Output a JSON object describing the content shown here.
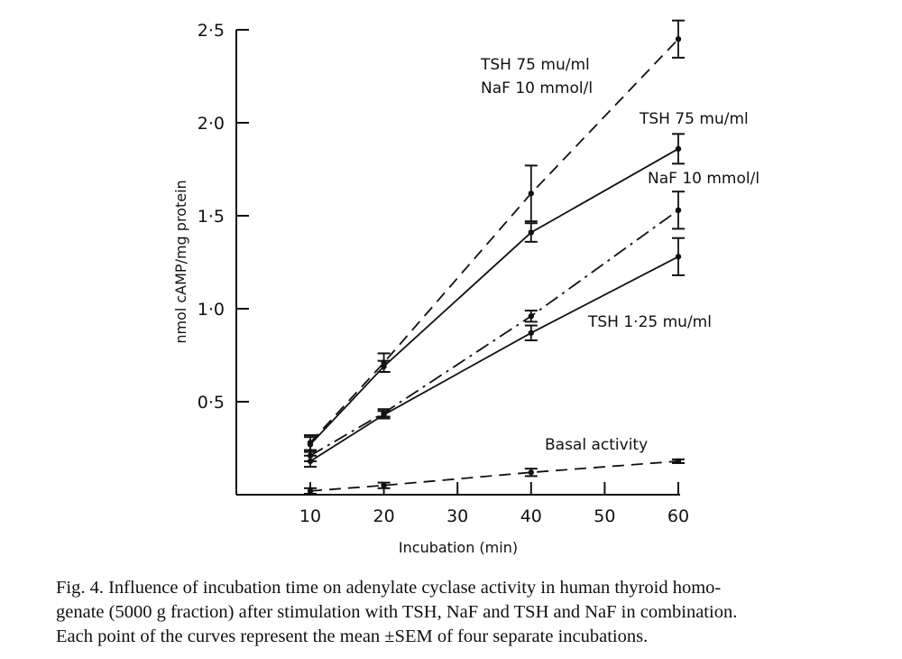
{
  "chart_data": {
    "type": "line",
    "xlabel": "Incubation (min)",
    "ylabel": "nmol cAMP/mg protein",
    "xlim": [
      0,
      60
    ],
    "ylim": [
      0,
      2.5
    ],
    "xticks": [
      10,
      20,
      30,
      40,
      50,
      60
    ],
    "xtick_labels": [
      "10",
      "20",
      "30",
      "40",
      "50",
      "60"
    ],
    "yticks": [
      0.5,
      1.0,
      1.5,
      2.0,
      2.5
    ],
    "ytick_labels": [
      "0·5",
      "1·0",
      "1·5",
      "2·0",
      "2·5"
    ],
    "series": [
      {
        "name": "TSH 75 mu/ml NaF 10 mmol/l",
        "label_lines": [
          "TSH 75 mu/ml",
          "NaF 10 mmol/l"
        ],
        "style": "dashed",
        "x": [
          10,
          20,
          40,
          60
        ],
        "y": [
          0.28,
          0.71,
          1.62,
          2.45
        ],
        "err": [
          0.04,
          0.05,
          0.15,
          0.1
        ]
      },
      {
        "name": "TSH 75 mu/ml",
        "label_lines": [
          "TSH 75 mu/ml"
        ],
        "style": "solid",
        "x": [
          10,
          20,
          40,
          60
        ],
        "y": [
          0.27,
          0.69,
          1.41,
          1.86
        ],
        "err": [
          0.04,
          0.03,
          0.05,
          0.08
        ]
      },
      {
        "name": "NaF 10 mmol/l",
        "label_lines": [
          "NaF 10 mmol/l"
        ],
        "style": "dashdot",
        "x": [
          10,
          20,
          40,
          60
        ],
        "y": [
          0.21,
          0.44,
          0.96,
          1.53
        ],
        "err": [
          0.03,
          0.02,
          0.03,
          0.1
        ]
      },
      {
        "name": "TSH 1·25 mu/ml",
        "label_lines": [
          "TSH 1·25 mu/ml"
        ],
        "style": "solid",
        "x": [
          10,
          20,
          40,
          60
        ],
        "y": [
          0.18,
          0.43,
          0.87,
          1.28
        ],
        "err": [
          0.03,
          0.02,
          0.04,
          0.1
        ]
      },
      {
        "name": "Basal activity",
        "label_lines": [
          "Basal activity"
        ],
        "style": "dashed",
        "x": [
          10,
          20,
          40,
          60
        ],
        "y": [
          0.02,
          0.05,
          0.12,
          0.18
        ],
        "err": [
          0.015,
          0.015,
          0.02,
          0.01
        ]
      }
    ]
  },
  "caption": {
    "lines": [
      "Fig. 4. Influence of incubation time on adenylate cyclase activity in human thyroid homo-",
      "genate (5000 g fraction) after stimulation with TSH, NaF and TSH and NaF in combination.",
      "Each point of the curves represent the mean ±SEM of four separate incubations."
    ]
  },
  "colors": {
    "ink": "#111111",
    "background": "#ffffff"
  }
}
